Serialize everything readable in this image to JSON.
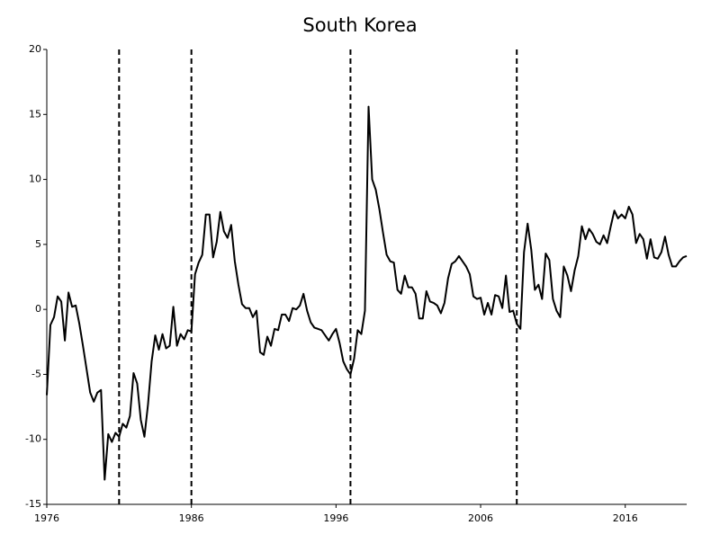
{
  "chart_data": {
    "type": "line",
    "title": "South Korea",
    "x": [
      1976,
      1976.25,
      1976.5,
      1976.75,
      1977,
      1977.25,
      1977.5,
      1977.75,
      1978,
      1978.25,
      1978.5,
      1978.75,
      1979,
      1979.25,
      1979.5,
      1979.75,
      1980,
      1980.25,
      1980.5,
      1980.75,
      1981,
      1981.25,
      1981.5,
      1981.75,
      1982,
      1982.25,
      1982.5,
      1982.75,
      1983,
      1983.25,
      1983.5,
      1983.75,
      1984,
      1984.25,
      1984.5,
      1984.75,
      1985,
      1985.25,
      1985.5,
      1985.75,
      1986,
      1986.25,
      1986.5,
      1986.75,
      1987,
      1987.25,
      1987.5,
      1987.75,
      1988,
      1988.25,
      1988.5,
      1988.75,
      1989,
      1989.25,
      1989.5,
      1989.75,
      1990,
      1990.25,
      1990.5,
      1990.75,
      1991,
      1991.25,
      1991.5,
      1991.75,
      1992,
      1992.25,
      1992.5,
      1992.75,
      1993,
      1993.25,
      1993.5,
      1993.75,
      1994,
      1994.25,
      1994.5,
      1994.75,
      1995,
      1995.25,
      1995.5,
      1995.75,
      1996,
      1996.25,
      1996.5,
      1996.75,
      1997,
      1997.25,
      1997.5,
      1997.75,
      1998,
      1998.25,
      1998.5,
      1998.75,
      1999,
      1999.25,
      1999.5,
      1999.75,
      2000,
      2000.25,
      2000.5,
      2000.75,
      2001,
      2001.25,
      2001.5,
      2001.75,
      2002,
      2002.25,
      2002.5,
      2002.75,
      2003,
      2003.25,
      2003.5,
      2003.75,
      2004,
      2004.25,
      2004.5,
      2004.75,
      2005,
      2005.25,
      2005.5,
      2005.75,
      2006,
      2006.25,
      2006.5,
      2006.75,
      2007,
      2007.25,
      2007.5,
      2007.75,
      2008,
      2008.25,
      2008.5,
      2008.75,
      2009,
      2009.25,
      2009.5,
      2009.75,
      2010,
      2010.25,
      2010.5,
      2010.75,
      2011,
      2011.25,
      2011.5,
      2011.75,
      2012,
      2012.25,
      2012.5,
      2012.75,
      2013,
      2013.25,
      2013.5,
      2013.75,
      2014,
      2014.25,
      2014.5,
      2014.75,
      2015,
      2015.25,
      2015.5,
      2015.75,
      2016,
      2016.25,
      2016.5,
      2016.75,
      2017,
      2017.25,
      2017.5,
      2017.75,
      2018,
      2018.25,
      2018.5,
      2018.75,
      2019,
      2019.25,
      2019.5,
      2019.75,
      2020,
      2020.25
    ],
    "series": [
      {
        "color": "#000000",
        "values": [
          -6.6,
          -1.2,
          -0.6,
          1.0,
          0.6,
          -2.4,
          1.3,
          0.2,
          0.3,
          -1.1,
          -2.8,
          -4.6,
          -6.4,
          -7.1,
          -6.4,
          -6.2,
          -13.1,
          -9.6,
          -10.2,
          -9.5,
          -9.8,
          -8.8,
          -9.1,
          -8.2,
          -4.9,
          -5.7,
          -8.5,
          -9.8,
          -7.3,
          -4.0,
          -2.0,
          -3.1,
          -1.9,
          -3.0,
          -2.8,
          0.2,
          -2.8,
          -1.9,
          -2.3,
          -1.6,
          -1.7,
          2.7,
          3.6,
          4.2,
          7.3,
          7.3,
          4.0,
          5.2,
          7.5,
          6.0,
          5.5,
          6.5,
          3.7,
          1.9,
          0.4,
          0.1,
          0.1,
          -0.6,
          -0.1,
          -3.3,
          -3.5,
          -2.1,
          -2.8,
          -1.5,
          -1.6,
          -0.4,
          -0.4,
          -0.9,
          0.1,
          0.0,
          0.3,
          1.2,
          -0.1,
          -1.0,
          -1.4,
          -1.5,
          -1.6,
          -2.0,
          -2.4,
          -1.9,
          -1.5,
          -2.6,
          -4.0,
          -4.6,
          -5.0,
          -3.8,
          -1.6,
          -1.9,
          -0.1,
          15.6,
          10.0,
          9.2,
          7.7,
          5.9,
          4.2,
          3.7,
          3.6,
          1.5,
          1.2,
          2.6,
          1.7,
          1.7,
          1.2,
          -0.7,
          -0.7,
          1.4,
          0.6,
          0.5,
          0.3,
          -0.3,
          0.5,
          2.4,
          3.5,
          3.7,
          4.1,
          3.7,
          3.3,
          2.7,
          1.0,
          0.8,
          0.9,
          -0.4,
          0.5,
          -0.4,
          1.1,
          1.0,
          0.1,
          2.6,
          -0.2,
          -0.1,
          -1.1,
          -1.5,
          4.4,
          6.6,
          4.6,
          1.5,
          1.9,
          0.8,
          4.3,
          3.8,
          0.8,
          -0.1,
          -0.6,
          3.3,
          2.6,
          1.4,
          3.0,
          4.1,
          6.4,
          5.4,
          6.2,
          5.8,
          5.2,
          5.0,
          5.7,
          5.1,
          6.4,
          7.6,
          7.0,
          7.3,
          7.0,
          7.9,
          7.3,
          5.1,
          5.8,
          5.4,
          3.9,
          5.4,
          4.0,
          3.9,
          4.4,
          5.6,
          4.2,
          3.3,
          3.3,
          3.7,
          4.0,
          4.1
        ]
      }
    ],
    "vlines": [
      1981,
      1986,
      1997,
      2008.5
    ],
    "xlim": [
      1976,
      2020.25
    ],
    "xticks": [
      1976,
      1986,
      1996,
      2006,
      2016
    ],
    "ylim": [
      -15,
      20
    ],
    "yticks": [
      -15,
      -10,
      -5,
      0,
      5,
      10,
      15,
      20
    ],
    "grid": false
  }
}
